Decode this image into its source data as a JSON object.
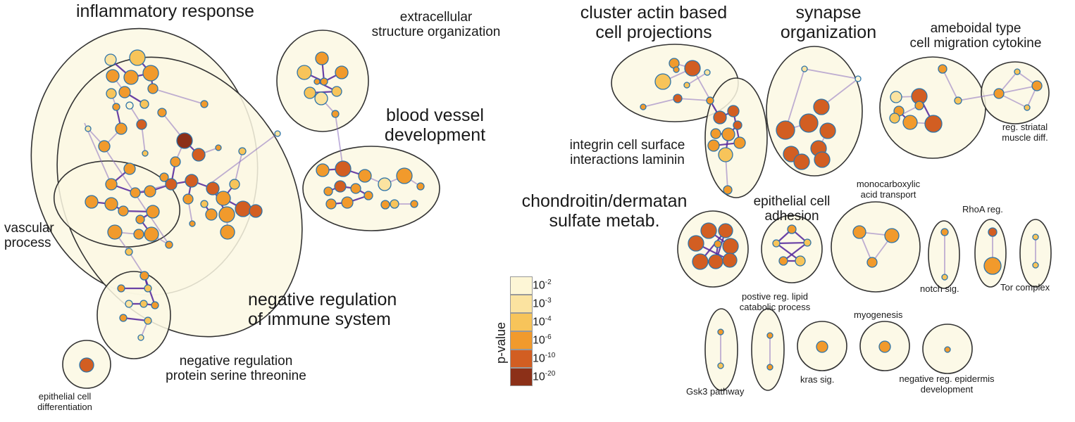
{
  "clusters": {
    "inflammatory_response": "inflammatory response",
    "extracellular_structure": "extracellular\nstructure organization",
    "blood_vessel": "blood vessel\ndevelopment",
    "vascular_process": "vascular\nprocess",
    "negative_immune": "negative regulation\nof immune system",
    "negative_serine": "negative regulation\nprotein serine threonine",
    "epithelial_diff": "epithelial cell\ndifferentiation",
    "cluster_actin": "cluster actin based\ncell projections",
    "synapse": "synapse\norganization",
    "ameboidal": "ameboidal type\ncell migration cytokine",
    "striatal": "reg. striatal\nmuscle diff.",
    "integrin": "integrin cell surface\ninteractions laminin",
    "chondroitin": "chondroitin/dermatan\nsulfate metab.",
    "epithelial_adhesion": "epithelial cell\nadhesion",
    "monocarboxylic": "monocarboxylic\nacid transport",
    "rhoa": "RhoA reg.",
    "notch": "notch sig.",
    "tor": "Tor complex",
    "lipid": "postive reg. lipid\ncatabolic process",
    "myogenesis": "myogenesis",
    "gsk3": "Gsk3 pathway",
    "kras": "kras sig.",
    "epidermis": "negative reg. epidermis\ndevelopment"
  },
  "legend": {
    "title": "p-value",
    "levels": [
      {
        "label": "10",
        "exp": "-2",
        "color": "#fdf6d6"
      },
      {
        "label": "10",
        "exp": "-3",
        "color": "#fbe3a0"
      },
      {
        "label": "10",
        "exp": "-4",
        "color": "#f7c45a"
      },
      {
        "label": "10",
        "exp": "-6",
        "color": "#f19a2c"
      },
      {
        "label": "10",
        "exp": "-10",
        "color": "#d25e22"
      },
      {
        "label": "10",
        "exp": "-20",
        "color": "#8c3018"
      }
    ]
  },
  "colors": {
    "cluster_fill": "#fbf8e3",
    "cluster_stroke": "#333333",
    "edge": "#8a6fc0",
    "edge_strong": "#5a2e9e",
    "node_stroke": "#2e74a8"
  }
}
